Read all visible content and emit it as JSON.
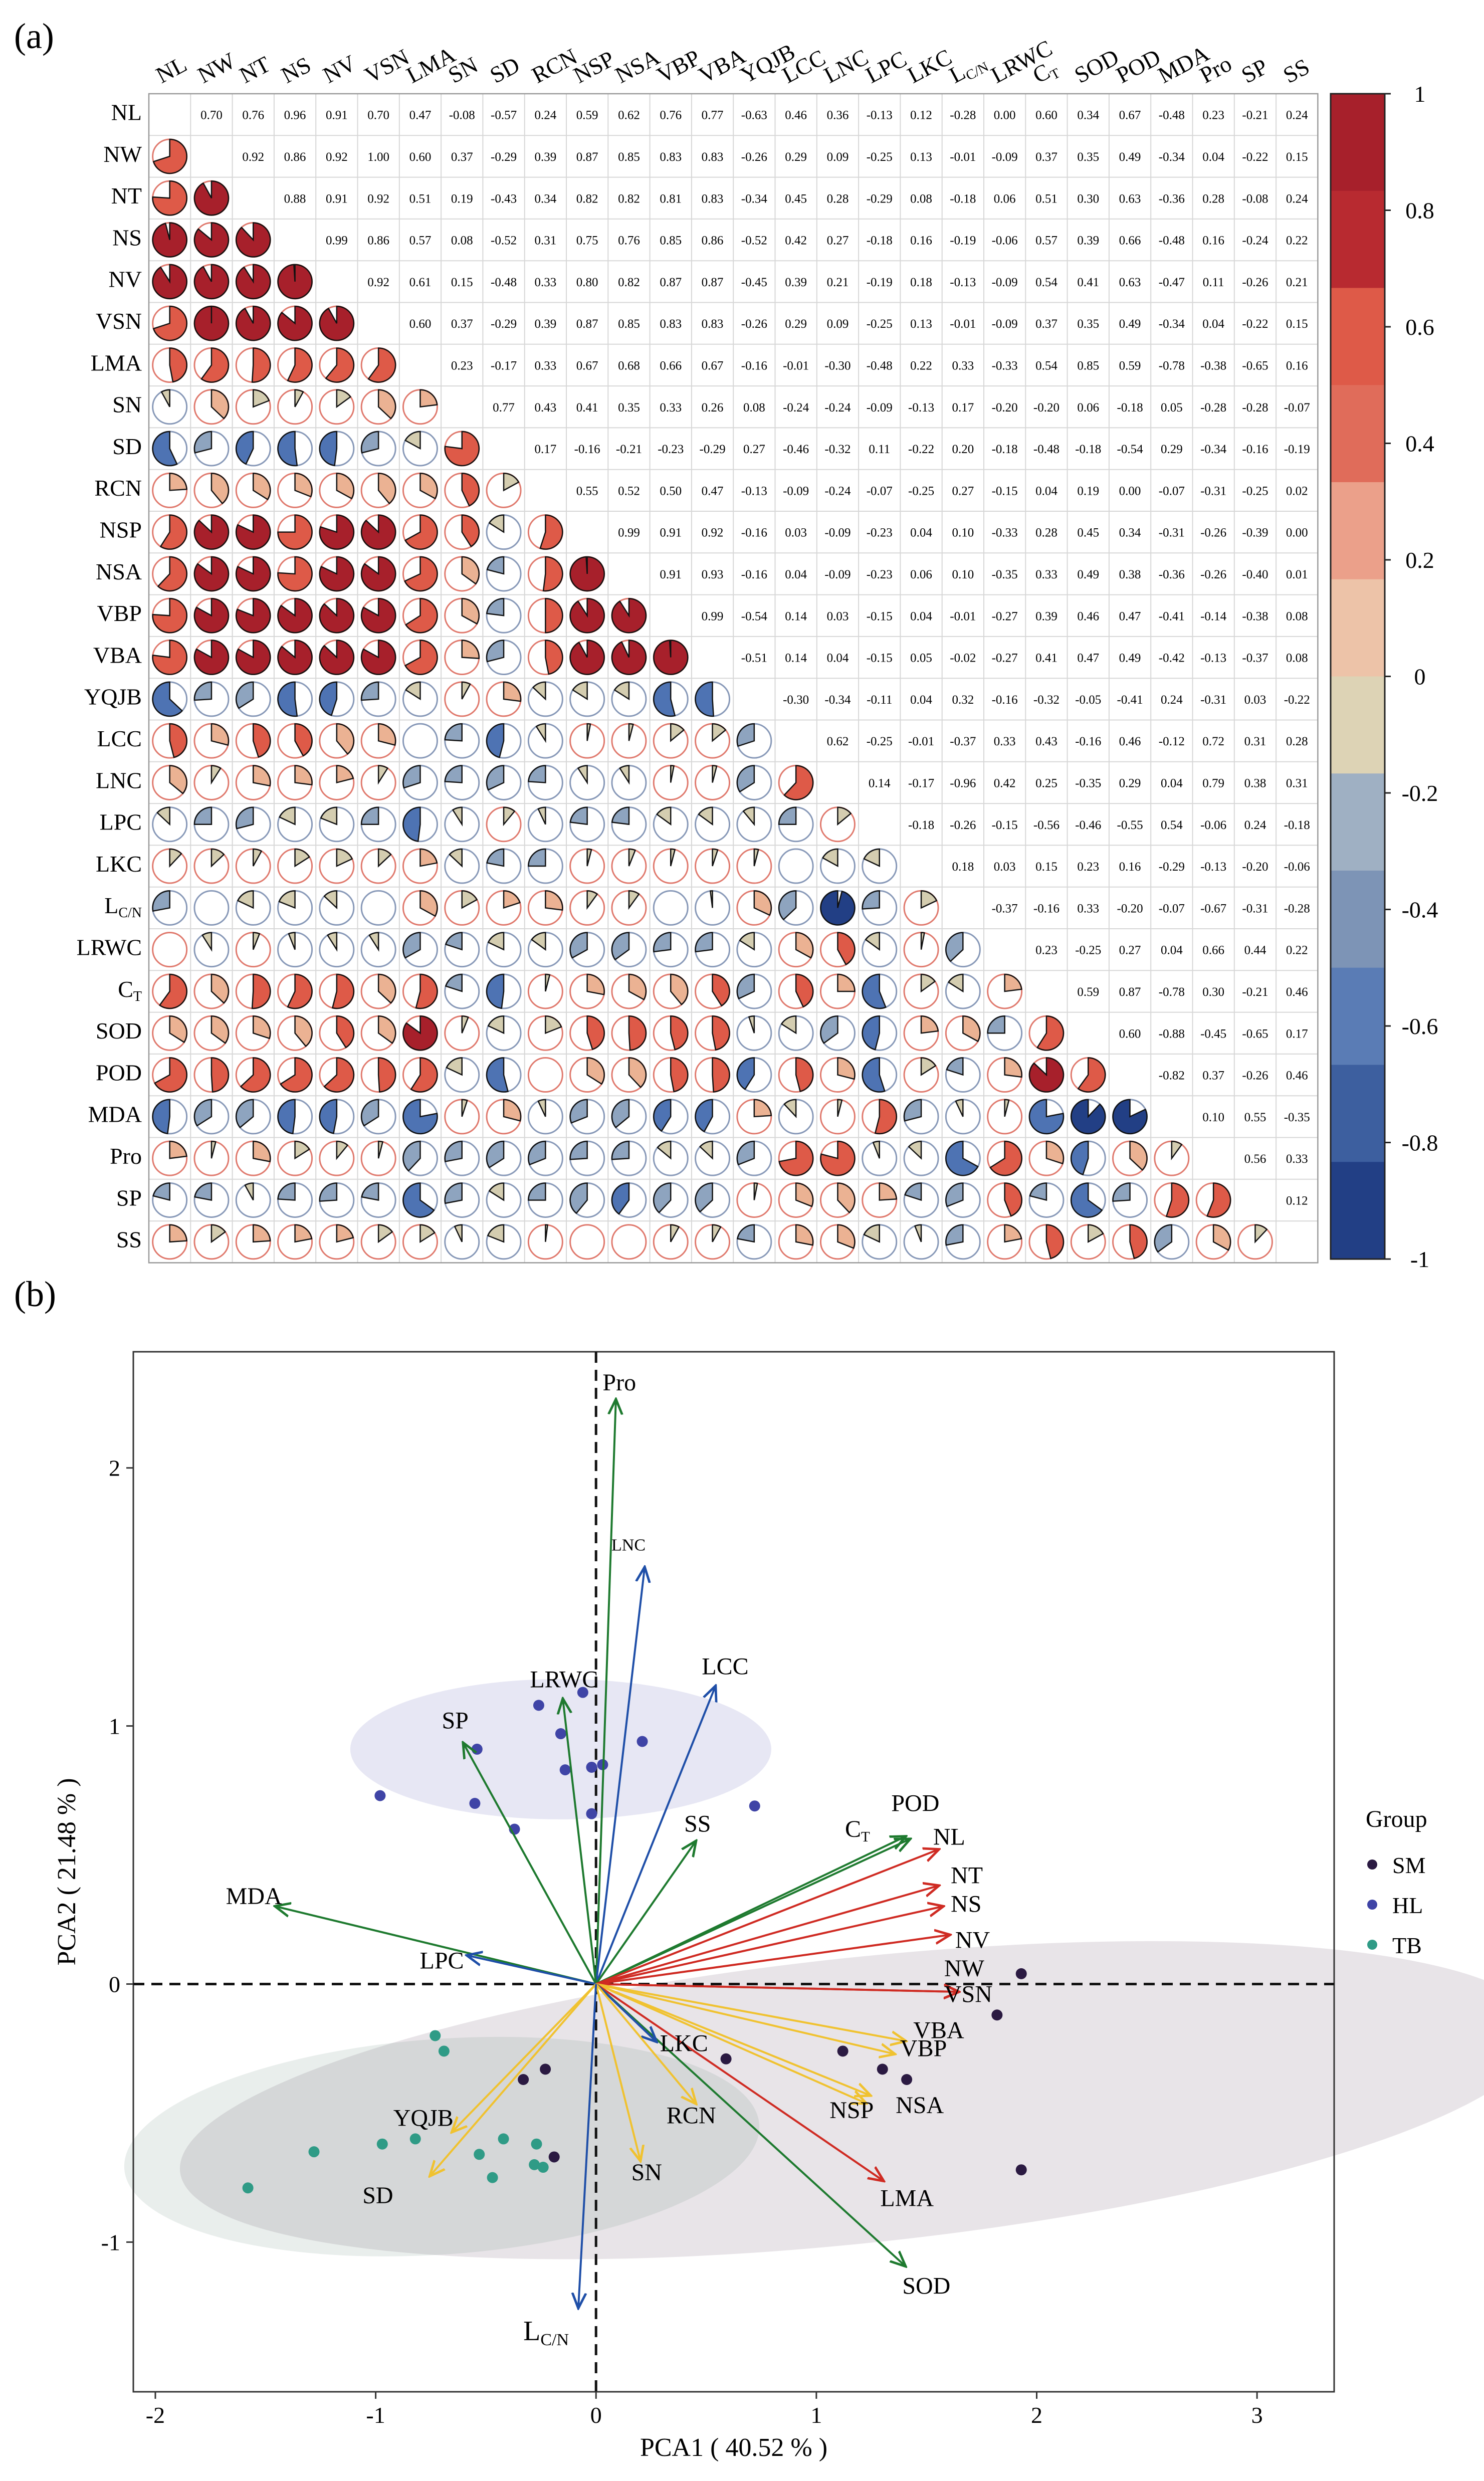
{
  "panel_a_label": "(a)",
  "panel_b_label": "(b)",
  "colors": {
    "neg_strong": "#223f85",
    "neg_mid": "#4e73b3",
    "neg_light": "#8ea4bf",
    "neutral": "#d4cdb0",
    "pos_light": "#ebb293",
    "pos_mid": "#de5a48",
    "pos_strong": "#a7202b",
    "gridline": "#d7d7d7",
    "sm": "#2b1a42",
    "hl": "#3f44a6",
    "tb": "#2f9b86",
    "arrow_green": "#1e7a2f",
    "arrow_blue": "#1f4fa8",
    "arrow_red": "#cf2b23",
    "arrow_yellow": "#f0c230"
  },
  "chart_data": [
    {
      "type": "heatmap",
      "title": "",
      "variables": [
        "NL",
        "NW",
        "NT",
        "NS",
        "NV",
        "VSN",
        "LMA",
        "SN",
        "SD",
        "RCN",
        "NSP",
        "NSA",
        "VBP",
        "VBA",
        "YQJB",
        "LCC",
        "LNC",
        "LPC",
        "LKC",
        "L_C/N",
        "LRWC",
        "C_T",
        "SOD",
        "POD",
        "MDA",
        "Pro",
        "SP",
        "SS"
      ],
      "upper_triangle_values": [
        [
          "0.70",
          "0.76",
          "0.96",
          "0.91",
          "0.70",
          "0.47",
          "-0.08",
          "-0.57",
          "0.24",
          "0.59",
          "0.62",
          "0.76",
          "0.77",
          "-0.63",
          "0.46",
          "0.36",
          "-0.13",
          "0.12",
          "-0.28",
          "0.00",
          "0.60",
          "0.34",
          "0.67",
          "-0.48",
          "0.23",
          "-0.21",
          "0.24"
        ],
        [
          "0.92",
          "0.86",
          "0.92",
          "1.00",
          "0.60",
          "0.37",
          "-0.29",
          "0.39",
          "0.87",
          "0.85",
          "0.83",
          "0.83",
          "-0.26",
          "0.29",
          "0.09",
          "-0.25",
          "0.13",
          "-0.01",
          "-0.09",
          "0.37",
          "0.35",
          "0.49",
          "-0.34",
          "0.04",
          "-0.22",
          "0.15"
        ],
        [
          "0.88",
          "0.91",
          "0.92",
          "0.51",
          "0.19",
          "-0.43",
          "0.34",
          "0.82",
          "0.82",
          "0.81",
          "0.83",
          "-0.34",
          "0.45",
          "0.28",
          "-0.29",
          "0.08",
          "-0.18",
          "0.06",
          "0.51",
          "0.30",
          "0.63",
          "-0.36",
          "0.28",
          "-0.08",
          "0.24"
        ],
        [
          "0.99",
          "0.86",
          "0.57",
          "0.08",
          "-0.52",
          "0.31",
          "0.75",
          "0.76",
          "0.85",
          "0.86",
          "-0.52",
          "0.42",
          "0.27",
          "-0.18",
          "0.16",
          "-0.19",
          "-0.06",
          "0.57",
          "0.39",
          "0.66",
          "-0.48",
          "0.16",
          "-0.24",
          "0.22"
        ],
        [
          "0.92",
          "0.61",
          "0.15",
          "-0.48",
          "0.33",
          "0.80",
          "0.82",
          "0.87",
          "0.87",
          "-0.45",
          "0.39",
          "0.21",
          "-0.19",
          "0.18",
          "-0.13",
          "-0.09",
          "0.54",
          "0.41",
          "0.63",
          "-0.47",
          "0.11",
          "-0.26",
          "0.21"
        ],
        [
          "0.60",
          "0.37",
          "-0.29",
          "0.39",
          "0.87",
          "0.85",
          "0.83",
          "0.83",
          "-0.26",
          "0.29",
          "0.09",
          "-0.25",
          "0.13",
          "-0.01",
          "-0.09",
          "0.37",
          "0.35",
          "0.49",
          "-0.34",
          "0.04",
          "-0.22",
          "0.15"
        ],
        [
          "0.23",
          "-0.17",
          "0.33",
          "0.67",
          "0.68",
          "0.66",
          "0.67",
          "-0.16",
          "-0.01",
          "-0.30",
          "-0.48",
          "0.22",
          "0.33",
          "-0.33",
          "0.54",
          "0.85",
          "0.59",
          "-0.78",
          "-0.38",
          "-0.65",
          "0.16"
        ],
        [
          "0.77",
          "0.43",
          "0.41",
          "0.35",
          "0.33",
          "0.26",
          "0.08",
          "-0.24",
          "-0.24",
          "-0.09",
          "-0.13",
          "0.17",
          "-0.20",
          "-0.20",
          "0.06",
          "-0.18",
          "0.05",
          "-0.28",
          "-0.28",
          "-0.07"
        ],
        [
          "0.17",
          "-0.16",
          "-0.21",
          "-0.23",
          "-0.29",
          "0.27",
          "-0.46",
          "-0.32",
          "0.11",
          "-0.22",
          "0.20",
          "-0.18",
          "-0.48",
          "-0.18",
          "-0.54",
          "0.29",
          "-0.34",
          "-0.16",
          "-0.19"
        ],
        [
          "0.55",
          "0.52",
          "0.50",
          "0.47",
          "-0.13",
          "-0.09",
          "-0.24",
          "-0.07",
          "-0.25",
          "0.27",
          "-0.15",
          "0.04",
          "0.19",
          "0.00",
          "-0.07",
          "-0.31",
          "-0.25",
          "0.02"
        ],
        [
          "0.99",
          "0.91",
          "0.92",
          "-0.16",
          "0.03",
          "-0.09",
          "-0.23",
          "0.04",
          "0.10",
          "-0.33",
          "0.28",
          "0.45",
          "0.34",
          "-0.31",
          "-0.26",
          "-0.39",
          "0.00"
        ],
        [
          "0.91",
          "0.93",
          "-0.16",
          "0.04",
          "-0.09",
          "-0.23",
          "0.06",
          "0.10",
          "-0.35",
          "0.33",
          "0.49",
          "0.38",
          "-0.36",
          "-0.26",
          "-0.40",
          "0.01"
        ],
        [
          "0.99",
          "-0.54",
          "0.14",
          "0.03",
          "-0.15",
          "0.04",
          "-0.01",
          "-0.27",
          "0.39",
          "0.46",
          "0.47",
          "-0.41",
          "-0.14",
          "-0.38",
          "0.08"
        ],
        [
          "-0.51",
          "0.14",
          "0.04",
          "-0.15",
          "0.05",
          "-0.02",
          "-0.27",
          "0.41",
          "0.47",
          "0.49",
          "-0.42",
          "-0.13",
          "-0.37",
          "0.08"
        ],
        [
          "-0.30",
          "-0.34",
          "-0.11",
          "0.04",
          "0.32",
          "-0.16",
          "-0.32",
          "-0.05",
          "-0.41",
          "0.24",
          "-0.31",
          "0.03",
          "-0.22"
        ],
        [
          "0.62",
          "-0.25",
          "-0.01",
          "-0.37",
          "0.33",
          "0.43",
          "-0.16",
          "0.46",
          "-0.12",
          "0.72",
          "0.31",
          "0.28"
        ],
        [
          "0.14",
          "-0.17",
          "-0.96",
          "0.42",
          "0.25",
          "-0.35",
          "0.29",
          "0.04",
          "0.79",
          "0.38",
          "0.31"
        ],
        [
          "-0.18",
          "-0.26",
          "-0.15",
          "-0.56",
          "-0.46",
          "-0.55",
          "0.54",
          "-0.06",
          "0.24",
          "-0.18"
        ],
        [
          "0.18",
          "0.03",
          "0.15",
          "0.23",
          "0.16",
          "-0.29",
          "-0.13",
          "-0.20",
          "-0.06"
        ],
        [
          "-0.37",
          "-0.16",
          "0.33",
          "-0.20",
          "-0.07",
          "-0.67",
          "-0.31",
          "-0.28"
        ],
        [
          "0.23",
          "-0.25",
          "0.27",
          "0.04",
          "0.66",
          "0.44",
          "0.22"
        ],
        [
          "0.59",
          "0.87",
          "-0.78",
          "0.30",
          "-0.21",
          "0.46"
        ],
        [
          "0.60",
          "-0.88",
          "-0.45",
          "-0.65",
          "0.17"
        ],
        [
          "-0.82",
          "0.37",
          "-0.26",
          "0.46"
        ],
        [
          "0.10",
          "0.55",
          "-0.35"
        ],
        [
          "0.56",
          "0.33"
        ],
        [
          "0.12"
        ],
        []
      ],
      "lower_triangle": "pie glyphs sized by |r|, colored by r (same correlations)",
      "colorbar": {
        "range": [
          -1,
          1
        ],
        "ticks": [
          "1",
          "0.8",
          "0.6",
          "0.4",
          "0.2",
          "0",
          "-0.2",
          "-0.4",
          "-0.6",
          "-0.8",
          "-1"
        ]
      }
    },
    {
      "type": "scatter",
      "title": "",
      "xlabel": "PCA1 ( 40.52 % )",
      "ylabel": "PCA2 ( 21.48 % )",
      "xlim": [
        -2.1,
        3.35
      ],
      "ylim": [
        -1.58,
        2.45
      ],
      "xticks": [
        "-2",
        "-1",
        "0",
        "1",
        "2",
        "3"
      ],
      "yticks": [
        "-1",
        "0",
        "1",
        "2"
      ],
      "legend_title": "Group",
      "groups": [
        "SM",
        "HL",
        "TB"
      ],
      "points": {
        "SM": [
          [
            1.93,
            0.04
          ],
          [
            1.82,
            -0.12
          ],
          [
            1.93,
            -0.72
          ],
          [
            1.12,
            -0.26
          ],
          [
            1.3,
            -0.33
          ],
          [
            1.41,
            -0.37
          ],
          [
            0.59,
            -0.29
          ],
          [
            -0.23,
            -0.33
          ],
          [
            -0.33,
            -0.37
          ],
          [
            -0.19,
            -0.67
          ]
        ],
        "HL": [
          [
            -0.98,
            0.73
          ],
          [
            -0.54,
            0.91
          ],
          [
            -0.55,
            0.7
          ],
          [
            -0.26,
            1.08
          ],
          [
            -0.16,
            0.97
          ],
          [
            -0.06,
            1.13
          ],
          [
            0.21,
            0.94
          ],
          [
            -0.02,
            0.84
          ],
          [
            0.03,
            0.85
          ],
          [
            -0.02,
            0.66
          ],
          [
            0.72,
            0.69
          ],
          [
            -0.14,
            0.83
          ],
          [
            -0.37,
            0.6
          ]
        ],
        "TB": [
          [
            -1.58,
            -0.79
          ],
          [
            -1.28,
            -0.65
          ],
          [
            -0.97,
            -0.62
          ],
          [
            -0.82,
            -0.6
          ],
          [
            -0.73,
            -0.2
          ],
          [
            -0.69,
            -0.26
          ],
          [
            -0.53,
            -0.66
          ],
          [
            -0.42,
            -0.6
          ],
          [
            -0.27,
            -0.62
          ],
          [
            -0.28,
            -0.7
          ],
          [
            -0.24,
            -0.71
          ],
          [
            -0.47,
            -0.75
          ]
        ]
      },
      "loadings": [
        {
          "name": "Pro",
          "x": 0.09,
          "y": 2.26,
          "color": "green"
        },
        {
          "name": "LNC",
          "x": 0.22,
          "y": 1.61,
          "color": "blue"
        },
        {
          "name": "LCC",
          "x": 0.54,
          "y": 1.15,
          "color": "blue"
        },
        {
          "name": "LRWC",
          "x": -0.15,
          "y": 1.1,
          "color": "green"
        },
        {
          "name": "SP",
          "x": -0.6,
          "y": 0.93,
          "color": "green"
        },
        {
          "name": "SS",
          "x": 0.45,
          "y": 0.55,
          "color": "green"
        },
        {
          "name": "MDA",
          "x": -1.45,
          "y": 0.3,
          "color": "green"
        },
        {
          "name": "LPC",
          "x": -0.58,
          "y": 0.11,
          "color": "blue"
        },
        {
          "name": "C_T",
          "x": 1.4,
          "y": 0.57,
          "color": "green"
        },
        {
          "name": "POD",
          "x": 1.42,
          "y": 0.56,
          "color": "green"
        },
        {
          "name": "NL",
          "x": 1.55,
          "y": 0.52,
          "color": "red"
        },
        {
          "name": "NT",
          "x": 1.55,
          "y": 0.38,
          "color": "red"
        },
        {
          "name": "NS",
          "x": 1.57,
          "y": 0.3,
          "color": "red"
        },
        {
          "name": "NV",
          "x": 1.6,
          "y": 0.19,
          "color": "red"
        },
        {
          "name": "NW",
          "x": 1.64,
          "y": -0.03,
          "color": "red"
        },
        {
          "name": "VSN",
          "x": 1.64,
          "y": -0.03,
          "color": "red"
        },
        {
          "name": "VBA",
          "x": 1.4,
          "y": -0.22,
          "color": "yellow"
        },
        {
          "name": "VBP",
          "x": 1.35,
          "y": -0.27,
          "color": "yellow"
        },
        {
          "name": "NSA",
          "x": 1.24,
          "y": -0.43,
          "color": "yellow"
        },
        {
          "name": "NSP",
          "x": 1.22,
          "y": -0.46,
          "color": "yellow"
        },
        {
          "name": "LMA",
          "x": 1.3,
          "y": -0.76,
          "color": "red"
        },
        {
          "name": "SOD",
          "x": 1.4,
          "y": -1.09,
          "color": "green"
        },
        {
          "name": "LKC",
          "x": 0.27,
          "y": -0.22,
          "color": "blue"
        },
        {
          "name": "RCN",
          "x": 0.45,
          "y": -0.46,
          "color": "yellow"
        },
        {
          "name": "SN",
          "x": 0.2,
          "y": -0.68,
          "color": "yellow"
        },
        {
          "name": "YQJB",
          "x": -0.65,
          "y": -0.57,
          "color": "yellow"
        },
        {
          "name": "SD",
          "x": -0.75,
          "y": -0.74,
          "color": "yellow"
        },
        {
          "name": "L_C/N",
          "x": -0.08,
          "y": -1.25,
          "color": "blue"
        }
      ]
    }
  ],
  "legend": {
    "title": "Group",
    "items": [
      {
        "label": "SM",
        "color": "#2b1a42"
      },
      {
        "label": "HL",
        "color": "#3f44a6"
      },
      {
        "label": "TB",
        "color": "#2f9b86"
      }
    ]
  }
}
